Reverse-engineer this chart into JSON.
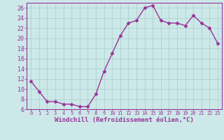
{
  "x": [
    0,
    1,
    2,
    3,
    4,
    5,
    6,
    7,
    8,
    9,
    10,
    11,
    12,
    13,
    14,
    15,
    16,
    17,
    18,
    19,
    20,
    21,
    22,
    23
  ],
  "y": [
    11.5,
    9.5,
    7.5,
    7.5,
    7.0,
    7.0,
    6.5,
    6.5,
    9.0,
    13.5,
    17.0,
    20.5,
    23.0,
    23.5,
    26.0,
    26.5,
    23.5,
    23.0,
    23.0,
    22.5,
    24.5,
    23.0,
    22.0,
    19.0
  ],
  "line_color": "#993399",
  "marker": "D",
  "markersize": 2.5,
  "linewidth": 1.0,
  "bg_color": "#cce8e8",
  "grid_color": "#aacccc",
  "xlabel": "Windchill (Refroidissement éolien,°C)",
  "xlim": [
    -0.5,
    23.5
  ],
  "ylim": [
    6,
    27
  ],
  "yticks": [
    6,
    8,
    10,
    12,
    14,
    16,
    18,
    20,
    22,
    24,
    26
  ],
  "xticks": [
    0,
    1,
    2,
    3,
    4,
    5,
    6,
    7,
    8,
    9,
    10,
    11,
    12,
    13,
    14,
    15,
    16,
    17,
    18,
    19,
    20,
    21,
    22,
    23
  ],
  "tick_color": "#993399",
  "label_color": "#993399",
  "x_fontsize": 5.0,
  "y_fontsize": 6.0,
  "xlabel_fontsize": 6.5
}
